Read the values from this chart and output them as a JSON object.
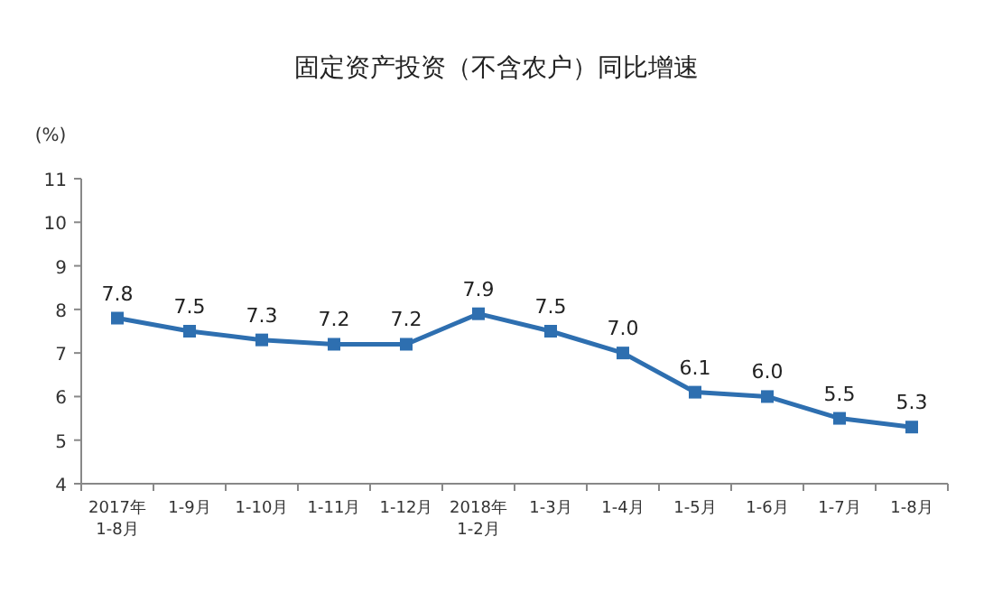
{
  "chart_data": {
    "type": "line",
    "title": "固定资产投资（不含农户）同比增速",
    "ylabel": "(%)",
    "categories": [
      "2017年\n1-8月",
      "1-9月",
      "1-10月",
      "1-11月",
      "1-12月",
      "2018年\n1-2月",
      "1-3月",
      "1-4月",
      "1-5月",
      "1-6月",
      "1-7月",
      "1-8月"
    ],
    "series": [
      {
        "color": "#2e6fb0",
        "values": [
          7.8,
          7.5,
          7.3,
          7.2,
          7.2,
          7.9,
          7.5,
          7.0,
          6.1,
          6.0,
          5.5,
          5.3
        ],
        "value_labels": [
          "7.8",
          "7.5",
          "7.3",
          "7.2",
          "7.2",
          "7.9",
          "7.5",
          "7.0",
          "6.1",
          "6.0",
          "5.5",
          "5.3"
        ]
      }
    ],
    "ylim": [
      4,
      11
    ],
    "yticks": [
      4,
      5,
      6,
      7,
      8,
      9,
      10,
      11
    ],
    "marker": "square",
    "line_style": "solid",
    "grid": false
  }
}
